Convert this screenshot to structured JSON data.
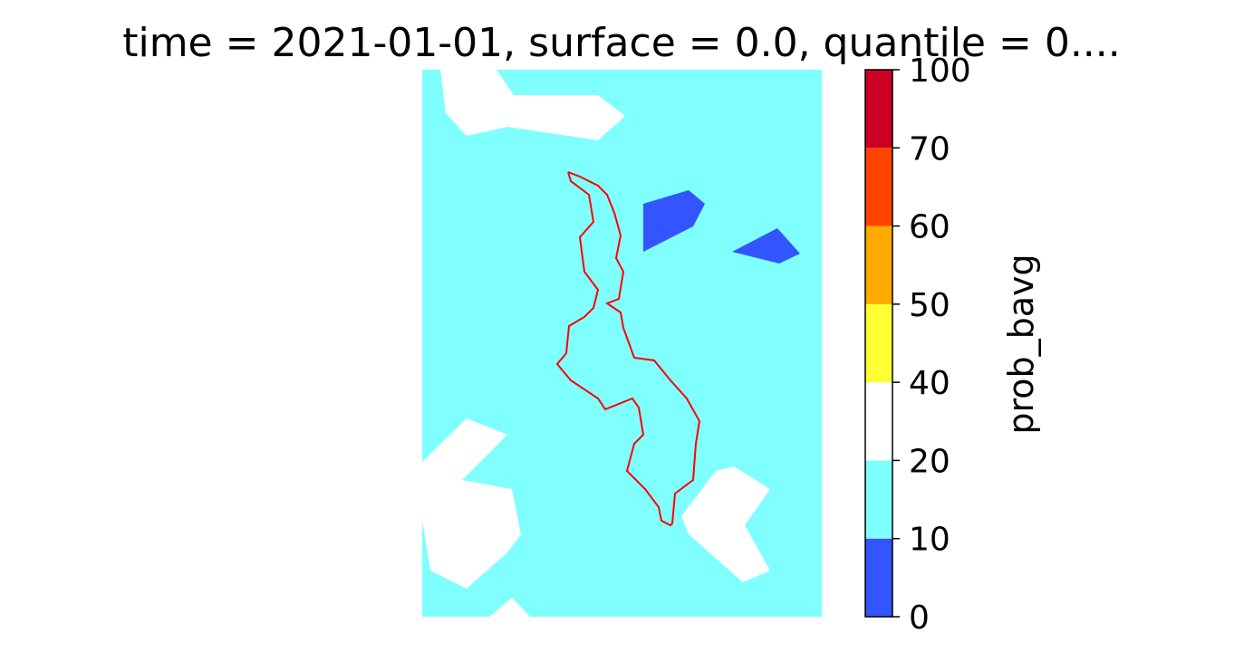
{
  "title": "time = 2021-01-01, surface = 0.0, quantile = 0....",
  "colorbar": {
    "label": "prob_bavg",
    "levels": [
      0,
      10,
      20,
      40,
      50,
      60,
      70,
      100
    ],
    "colors": [
      "#3355ff",
      "#80ffff",
      "#ffffff",
      "#ffff33",
      "#ffaa00",
      "#ff4400",
      "#cc0022"
    ]
  },
  "border_color": "#ff0000"
}
